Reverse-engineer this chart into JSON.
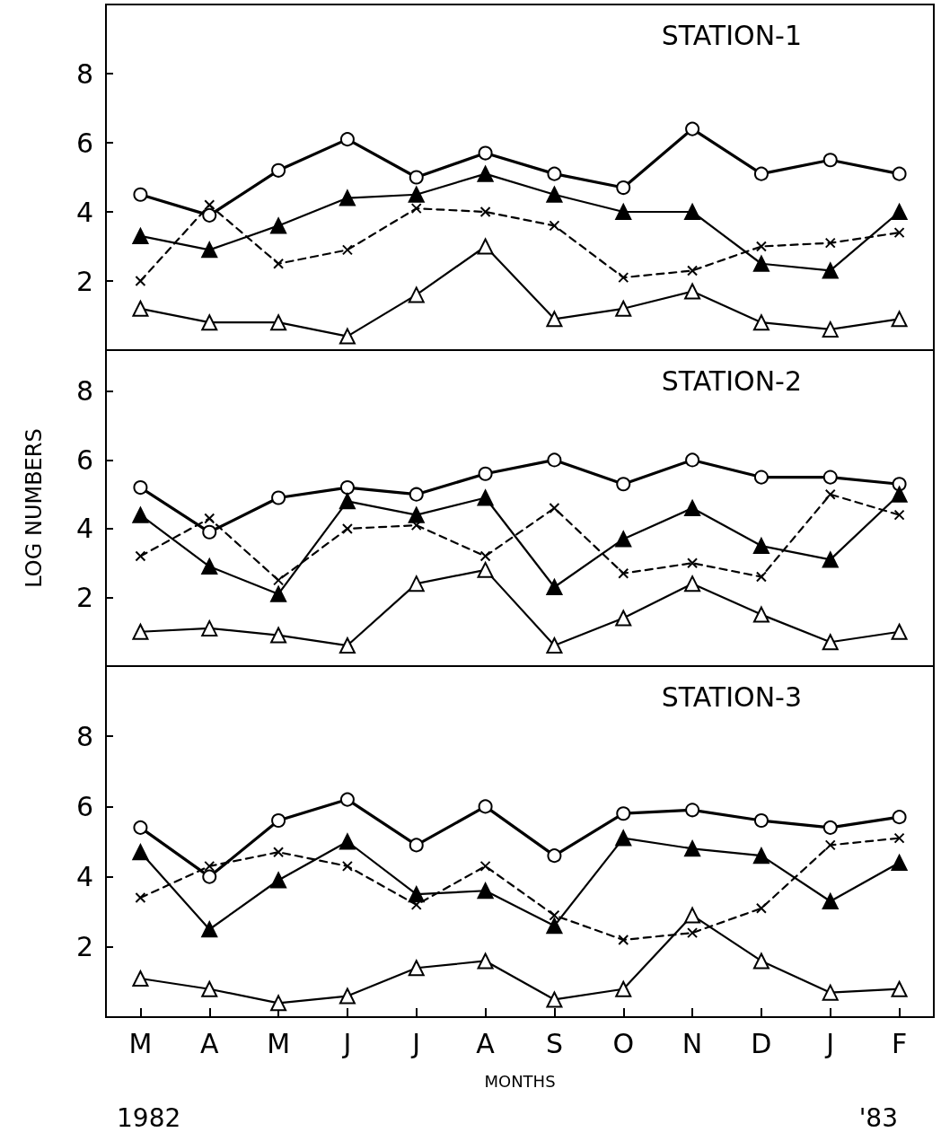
{
  "chart_data": [
    {
      "type": "line",
      "title": "STATION-1",
      "categories": [
        null,
        null,
        null,
        null,
        null,
        null,
        null,
        null,
        null,
        null,
        null,
        null
      ],
      "ylim": [
        0,
        10
      ],
      "yticks": [
        2,
        4,
        6,
        8
      ],
      "tick_labels": "y",
      "series": [
        {
          "color": "#000000",
          "marker": "circle",
          "line_style": "solid",
          "values": [
            4.5,
            3.9,
            5.2,
            6.1,
            5.0,
            5.7,
            5.1,
            4.7,
            6.4,
            5.1,
            5.5,
            5.1
          ]
        },
        {
          "color": "#000000",
          "marker": "triangle",
          "line_style": "solid",
          "values": [
            3.3,
            2.9,
            3.6,
            4.4,
            4.5,
            5.1,
            4.5,
            4.0,
            4.0,
            2.5,
            2.3,
            4.0
          ]
        },
        {
          "color": "#000000",
          "marker": "cross",
          "line_style": "dashed",
          "values": [
            2.0,
            4.2,
            2.5,
            2.9,
            4.1,
            4.0,
            3.6,
            2.1,
            2.3,
            3.0,
            3.1,
            3.4
          ]
        },
        {
          "color": "#000000",
          "marker": "triangle",
          "line_style": "solid",
          "values": [
            1.2,
            0.8,
            0.8,
            0.4,
            1.6,
            3.0,
            0.9,
            1.2,
            1.7,
            0.8,
            0.6,
            0.9
          ]
        }
      ]
    },
    {
      "type": "line",
      "title": "STATION-2",
      "ylabel": "LOG NUMBERS",
      "categories": [
        null,
        null,
        null,
        null,
        null,
        null,
        null,
        null,
        null,
        null,
        null,
        null
      ],
      "ylim": [
        0,
        9.2
      ],
      "yticks": [
        2,
        4,
        6,
        8
      ],
      "tick_labels": "y",
      "series": [
        {
          "color": "#000000",
          "marker": "circle",
          "line_style": "solid",
          "values": [
            5.2,
            3.9,
            4.9,
            5.2,
            5.0,
            5.6,
            6.0,
            5.3,
            6.0,
            5.5,
            5.5,
            5.3
          ]
        },
        {
          "color": "#000000",
          "marker": "triangle",
          "line_style": "solid",
          "values": [
            4.4,
            2.9,
            2.1,
            4.8,
            4.4,
            4.9,
            2.3,
            3.7,
            4.6,
            3.5,
            3.1,
            5.0
          ]
        },
        {
          "color": "#000000",
          "marker": "cross",
          "line_style": "dashed",
          "values": [
            3.2,
            4.3,
            2.5,
            4.0,
            4.1,
            3.2,
            4.6,
            2.7,
            3.0,
            2.6,
            5.0,
            4.4
          ]
        },
        {
          "color": "#000000",
          "marker": "triangle",
          "line_style": "solid",
          "values": [
            1.0,
            1.1,
            0.9,
            0.6,
            2.4,
            2.8,
            0.6,
            1.4,
            2.4,
            1.5,
            0.7,
            1.0
          ]
        }
      ]
    },
    {
      "type": "line",
      "title": "STATION-3",
      "xlabel": "MONTHS",
      "annotations": [
        "1982",
        "'83"
      ],
      "categories": [
        "M",
        "A",
        "M",
        "J",
        "J",
        "A",
        "S",
        "O",
        "N",
        "D",
        "J",
        "F"
      ],
      "ylim": [
        0,
        10
      ],
      "yticks": [
        2,
        4,
        6,
        8
      ],
      "series": [
        {
          "color": "#000000",
          "marker": "circle",
          "line_style": "solid",
          "values": [
            5.4,
            4.0,
            5.6,
            6.2,
            4.9,
            6.0,
            4.6,
            5.8,
            5.9,
            5.6,
            5.4,
            5.7
          ]
        },
        {
          "color": "#000000",
          "marker": "triangle",
          "line_style": "solid",
          "values": [
            4.7,
            2.5,
            3.9,
            5.0,
            3.5,
            3.6,
            2.6,
            5.1,
            4.8,
            4.6,
            3.3,
            4.4
          ]
        },
        {
          "color": "#000000",
          "marker": "cross",
          "line_style": "dashed",
          "values": [
            3.4,
            4.3,
            4.7,
            4.3,
            3.2,
            4.3,
            2.9,
            2.2,
            2.4,
            3.1,
            4.9,
            5.1
          ]
        },
        {
          "color": "#000000",
          "marker": "triangle",
          "line_style": "solid",
          "values": [
            1.1,
            0.8,
            0.4,
            0.6,
            1.4,
            1.6,
            0.5,
            0.8,
            2.9,
            1.6,
            0.7,
            0.8
          ]
        }
      ]
    }
  ]
}
